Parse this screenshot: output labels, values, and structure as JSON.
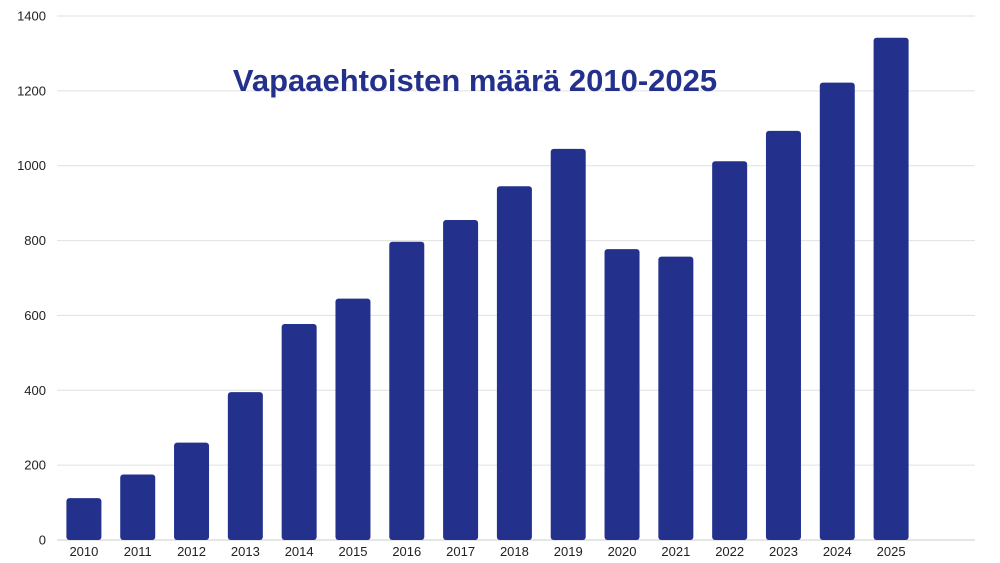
{
  "chart_data": {
    "type": "bar",
    "title": "Vapaaehtoisten määrä 2010-2025",
    "categories": [
      "2010",
      "2011",
      "2012",
      "2013",
      "2014",
      "2015",
      "2016",
      "2017",
      "2018",
      "2019",
      "2020",
      "2021",
      "2022",
      "2023",
      "2024",
      "2025"
    ],
    "values": [
      112,
      175,
      260,
      395,
      577,
      645,
      797,
      855,
      945,
      1045,
      777,
      757,
      1012,
      1093,
      1222,
      1342
    ],
    "yticks": [
      "0",
      "200",
      "400",
      "600",
      "800",
      "1000",
      "1200",
      "1400"
    ],
    "ylim": [
      0,
      1400
    ],
    "xlabel": "",
    "ylabel": "",
    "grid": true,
    "legend": "none",
    "colors": {
      "bar": "#24318c",
      "title": "#24318c",
      "grid": "#e0e0e0"
    }
  }
}
